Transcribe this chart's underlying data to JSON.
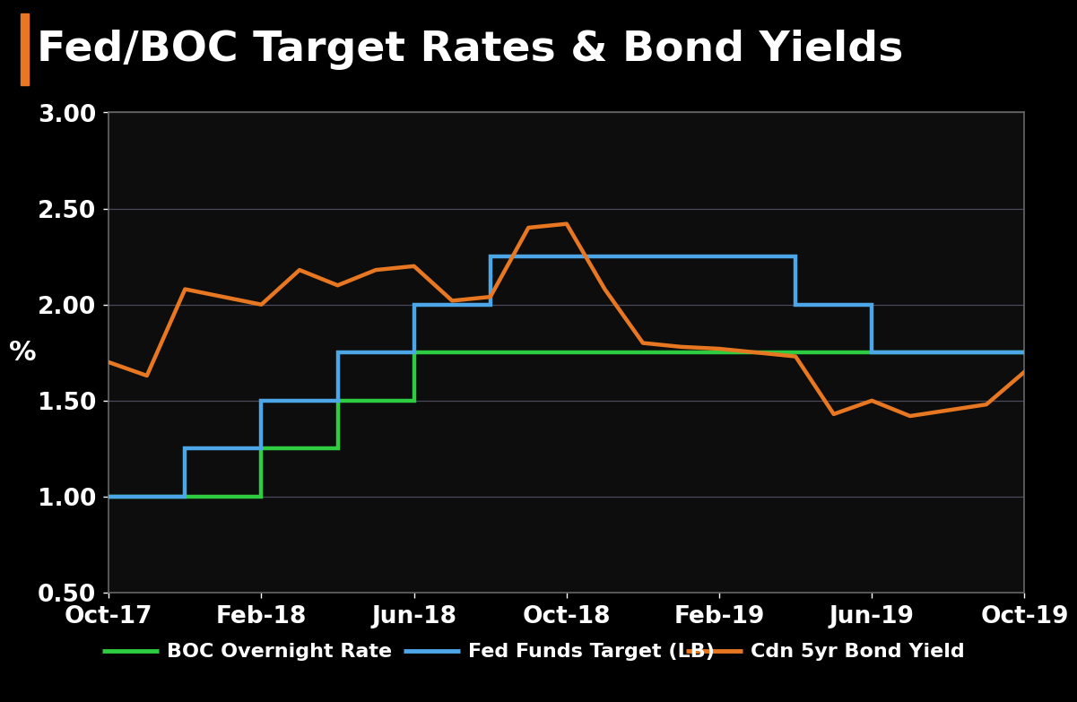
{
  "title": "Fed/BOC Target Rates & Bond Yields",
  "background_color": "#000000",
  "plot_bg_color": "#0d0d0d",
  "header_bg_color": "#000000",
  "title_color": "#ffffff",
  "title_fontsize": 34,
  "ylabel": "%",
  "ylabel_color": "#ffffff",
  "ylabel_fontsize": 22,
  "tick_color": "#ffffff",
  "tick_fontsize": 19,
  "ylim": [
    0.5,
    3.0
  ],
  "yticks": [
    0.5,
    1.0,
    1.5,
    2.0,
    2.5,
    3.0
  ],
  "grid_color": "#4a4a5a",
  "accent_color": "#e87722",
  "header_line_color": "#888888",
  "xtick_labels": [
    "Oct-17",
    "Feb-18",
    "Jun-18",
    "Oct-18",
    "Feb-19",
    "Jun-19",
    "Oct-19"
  ],
  "boc_x": [
    0,
    4,
    4,
    6,
    6,
    8,
    8,
    10,
    10,
    24
  ],
  "boc_y": [
    1.0,
    1.0,
    1.25,
    1.25,
    1.5,
    1.5,
    1.75,
    1.75,
    1.75,
    1.75
  ],
  "fed_x": [
    0,
    2,
    2,
    4,
    4,
    6,
    6,
    8,
    8,
    10,
    10,
    14,
    14,
    18,
    18,
    20,
    20,
    24
  ],
  "fed_y": [
    1.0,
    1.0,
    1.25,
    1.25,
    1.5,
    1.5,
    1.75,
    1.75,
    2.0,
    2.0,
    2.25,
    2.25,
    2.25,
    2.25,
    2.0,
    2.0,
    1.75,
    1.75
  ],
  "cdn_x": [
    0,
    1,
    2,
    3,
    4,
    5,
    6,
    7,
    8,
    9,
    10,
    11,
    12,
    13,
    14,
    15,
    16,
    17,
    18,
    19,
    20,
    21,
    22,
    23,
    24
  ],
  "cdn_y": [
    1.7,
    1.63,
    2.08,
    2.04,
    2.0,
    2.18,
    2.1,
    2.18,
    2.2,
    2.02,
    2.04,
    2.4,
    2.42,
    2.08,
    1.8,
    1.78,
    1.77,
    1.75,
    1.73,
    1.43,
    1.5,
    1.42,
    1.45,
    1.48,
    1.65
  ],
  "boc_color": "#2ecc40",
  "fed_color": "#4da6e8",
  "cdn_color": "#e87722",
  "line_width": 3.2,
  "legend_labels": [
    "BOC Overnight Rate",
    "Fed Funds Target (LB)",
    "Cdn 5yr Bond Yield"
  ],
  "legend_text_color": "#ffffff",
  "legend_fontsize": 16
}
